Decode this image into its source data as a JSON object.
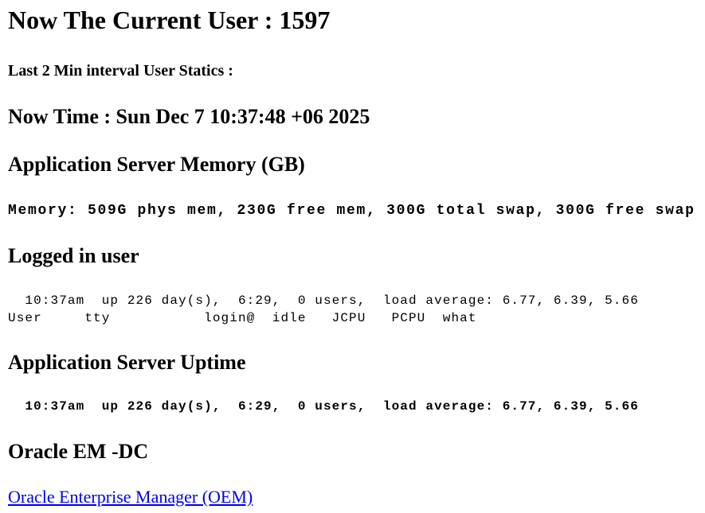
{
  "title": "Now The Current User : 1597",
  "interval_label": "Last 2 Min interval User Statics :",
  "now_time": "Now Time : Sun Dec 7 10:37:48 +06 2025",
  "memory": {
    "heading": "Application Server Memory (GB)",
    "line": "Memory: 509G phys mem, 230G free mem, 300G total swap, 300G free swap"
  },
  "logged_in": {
    "heading": "Logged in user",
    "uptime_line": "  10:37am  up 226 day(s),  6:29,  0 users,  load average: 6.77, 6.39, 5.66",
    "columns_line": "User     tty           login@  idle   JCPU   PCPU  what"
  },
  "uptime": {
    "heading": "Application Server Uptime",
    "line": "  10:37am  up 226 day(s),  6:29,  0 users,  load average: 6.77, 6.39, 5.66"
  },
  "oem": {
    "heading": "Oracle EM -DC",
    "link_text": "Oracle Enterprise Manager (OEM)",
    "link_color": "#0000ee"
  }
}
